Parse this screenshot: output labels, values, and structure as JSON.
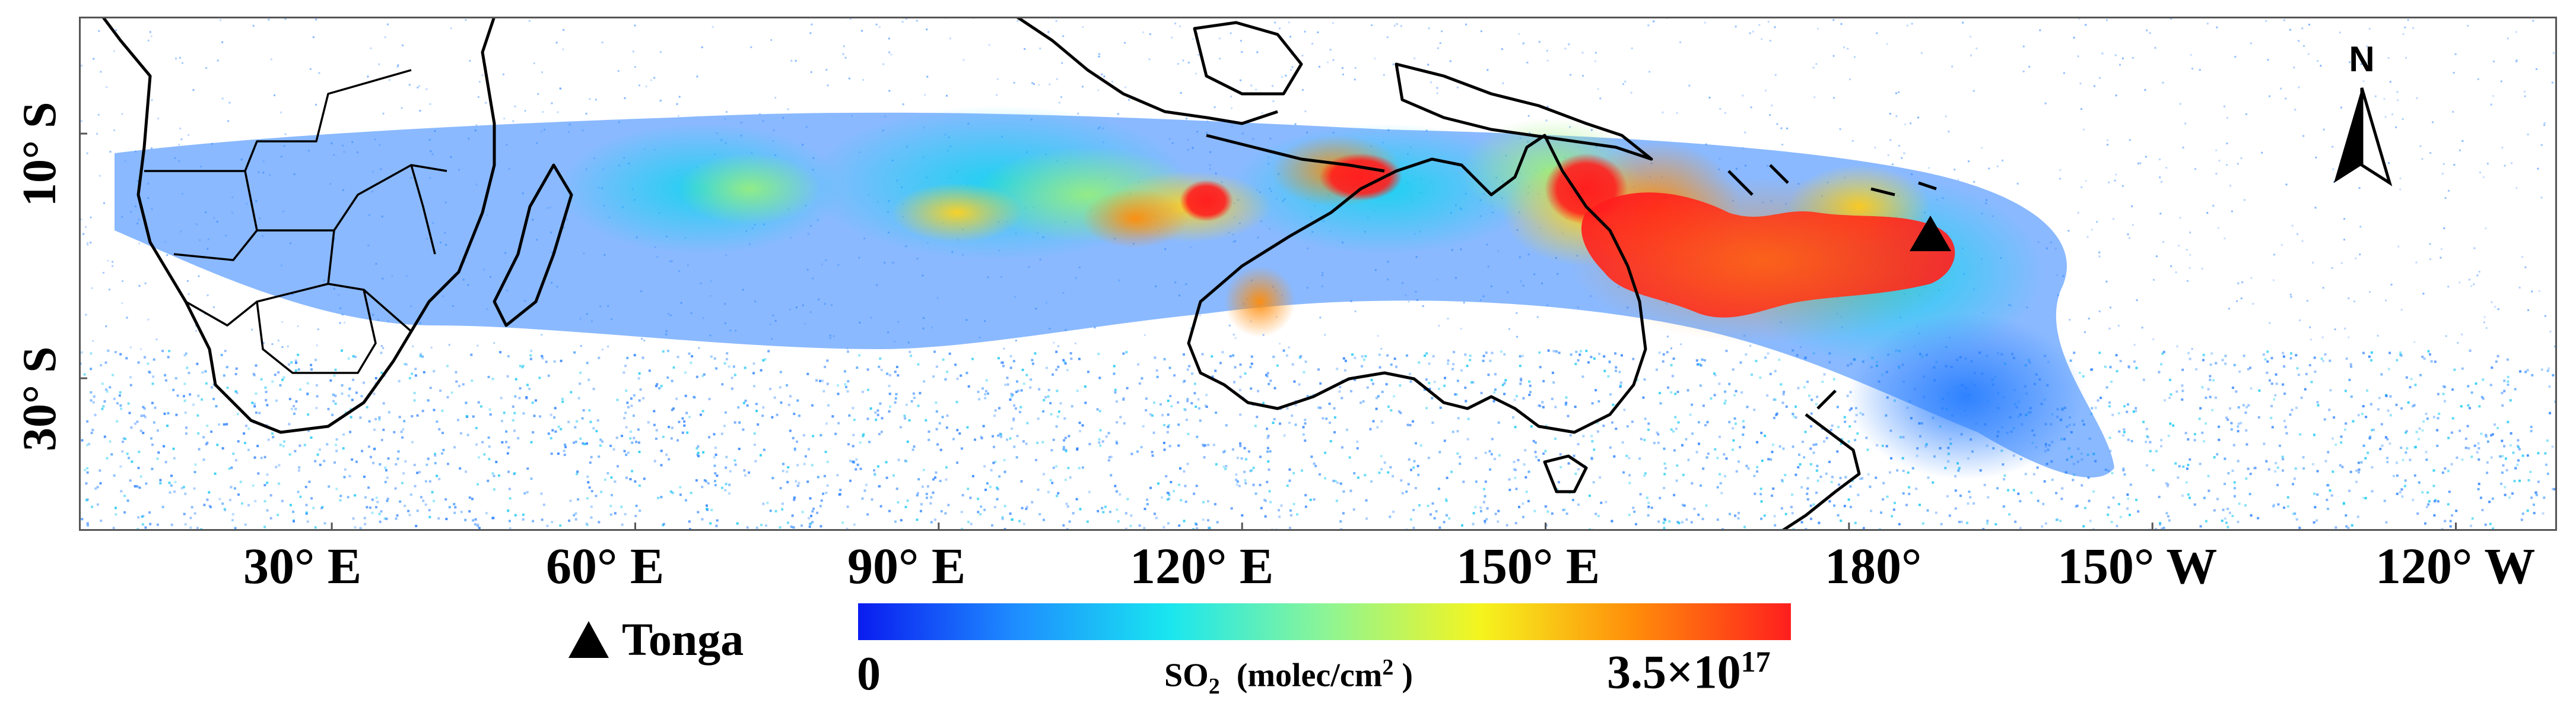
{
  "map": {
    "y_ticks": [
      {
        "label": "10° S",
        "lat": -10
      },
      {
        "label": "30° S",
        "lat": -30
      }
    ],
    "x_ticks": [
      {
        "label": "30° E",
        "lon": 30
      },
      {
        "label": "60° E",
        "lon": 60
      },
      {
        "label": "90° E",
        "lon": 90
      },
      {
        "label": "120° E",
        "lon": 120
      },
      {
        "label": "150° E",
        "lon": 150
      },
      {
        "label": "180°",
        "lon": 180
      },
      {
        "label": "150° W",
        "lon": 210
      },
      {
        "label": "120° W",
        "lon": 240
      }
    ],
    "north_label": "N",
    "volcano_label": "Tonga",
    "volcano_lon": 184.6,
    "volcano_lat": -20.5
  },
  "colorbar": {
    "min_label": "0",
    "max_base": "3.5×10",
    "max_exp": "17",
    "unit_prefix": "SO",
    "unit_sub": "2",
    "unit_mid": "(molec/cm",
    "unit_sup": "2",
    "unit_end": ")",
    "colors": [
      "#0a1cf0",
      "#1e8cff",
      "#19e6f0",
      "#8cf596",
      "#f5f51e",
      "#ff8c0a",
      "#ff1e1e"
    ]
  },
  "plume_colors": {
    "low": "#2a7fff",
    "mid": "#19d2f0",
    "mid2": "#9af07a",
    "high": "#ffd21e",
    "higher": "#ff8c0a",
    "max": "#ff1e1e"
  }
}
